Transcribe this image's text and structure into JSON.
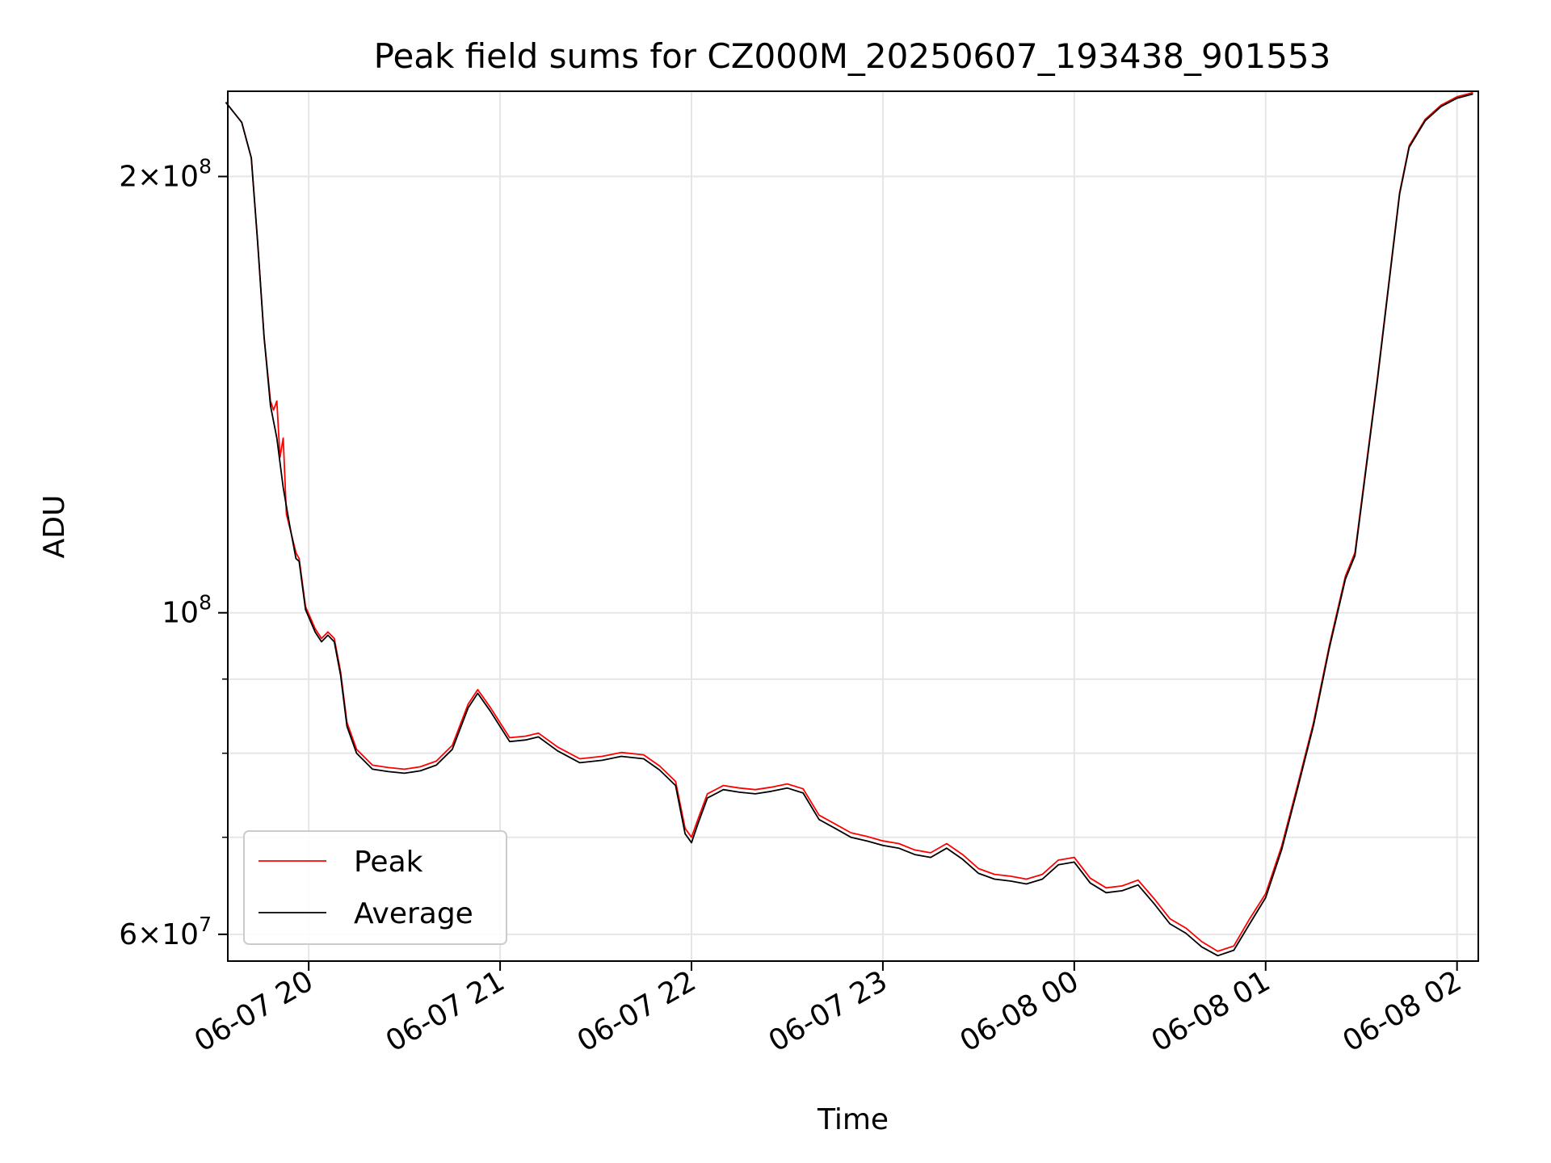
{
  "chart_data": {
    "type": "line",
    "title": "Peak field sums for CZ000M_20250607_193438_901553",
    "xlabel": "Time",
    "ylabel": "ADU",
    "yscale": "log",
    "ylim": [
      57500000,
      229000000
    ],
    "xlim": [
      "2025-06-07 19:34:38",
      "2025-06-08 02:06:40"
    ],
    "grid": true,
    "legend_position": "lower-left",
    "x_ticks": [
      {
        "time": "2025-06-07 20:00",
        "label": "06-07 20"
      },
      {
        "time": "2025-06-07 21:00",
        "label": "06-07 21"
      },
      {
        "time": "2025-06-07 22:00",
        "label": "06-07 22"
      },
      {
        "time": "2025-06-07 23:00",
        "label": "06-07 23"
      },
      {
        "time": "2025-06-08 00:00",
        "label": "06-08 00"
      },
      {
        "time": "2025-06-08 01:00",
        "label": "06-08 01"
      },
      {
        "time": "2025-06-08 02:00",
        "label": "06-08 02"
      }
    ],
    "y_major_ticks": [
      {
        "value": 60000000,
        "mantissa": "6",
        "exponent": "7"
      },
      {
        "value": 100000000,
        "mantissa": "",
        "exponent": "8"
      },
      {
        "value": 200000000,
        "mantissa": "2",
        "exponent": "8"
      }
    ],
    "y_minor_ticks": [
      70000000,
      80000000,
      90000000
    ],
    "series": [
      {
        "name": "Peak",
        "color": "#ff0000",
        "points": [
          [
            "2025-06-07 19:34",
            225000000
          ],
          [
            "2025-06-07 19:39",
            218000000
          ],
          [
            "2025-06-07 19:42",
            206000000
          ],
          [
            "2025-06-07 19:44",
            180000000
          ],
          [
            "2025-06-07 19:46",
            155000000
          ],
          [
            "2025-06-07 19:48",
            140000000
          ],
          [
            "2025-06-07 19:49",
            138000000
          ],
          [
            "2025-06-07 19:50",
            140000000
          ],
          [
            "2025-06-07 19:51",
            128000000
          ],
          [
            "2025-06-07 19:52",
            132000000
          ],
          [
            "2025-06-07 19:53",
            117000000
          ],
          [
            "2025-06-07 19:56",
            110000000
          ],
          [
            "2025-06-07 19:57",
            109000000
          ],
          [
            "2025-06-07 19:59",
            101000000
          ],
          [
            "2025-06-07 20:02",
            97500000
          ],
          [
            "2025-06-07 20:04",
            96000000
          ],
          [
            "2025-06-07 20:06",
            97000000
          ],
          [
            "2025-06-07 20:08",
            96000000
          ],
          [
            "2025-06-07 20:10",
            91000000
          ],
          [
            "2025-06-07 20:12",
            84000000
          ],
          [
            "2025-06-07 20:15",
            80500000
          ],
          [
            "2025-06-07 20:20",
            78500000
          ],
          [
            "2025-06-07 20:25",
            78200000
          ],
          [
            "2025-06-07 20:30",
            78000000
          ],
          [
            "2025-06-07 20:35",
            78300000
          ],
          [
            "2025-06-07 20:40",
            79000000
          ],
          [
            "2025-06-07 20:45",
            81000000
          ],
          [
            "2025-06-07 20:50",
            86500000
          ],
          [
            "2025-06-07 20:53",
            88500000
          ],
          [
            "2025-06-07 20:57",
            86000000
          ],
          [
            "2025-06-07 21:03",
            82000000
          ],
          [
            "2025-06-07 21:08",
            82200000
          ],
          [
            "2025-06-07 21:12",
            82600000
          ],
          [
            "2025-06-07 21:18",
            80800000
          ],
          [
            "2025-06-07 21:25",
            79300000
          ],
          [
            "2025-06-07 21:32",
            79600000
          ],
          [
            "2025-06-07 21:38",
            80100000
          ],
          [
            "2025-06-07 21:45",
            79800000
          ],
          [
            "2025-06-07 21:50",
            78400000
          ],
          [
            "2025-06-07 21:55",
            76500000
          ],
          [
            "2025-06-07 21:58",
            71000000
          ],
          [
            "2025-06-07 22:00",
            70000000
          ],
          [
            "2025-06-07 22:02",
            72000000
          ],
          [
            "2025-06-07 22:05",
            75000000
          ],
          [
            "2025-06-07 22:10",
            76000000
          ],
          [
            "2025-06-07 22:15",
            75700000
          ],
          [
            "2025-06-07 22:20",
            75500000
          ],
          [
            "2025-06-07 22:25",
            75800000
          ],
          [
            "2025-06-07 22:30",
            76200000
          ],
          [
            "2025-06-07 22:35",
            75600000
          ],
          [
            "2025-06-07 22:40",
            72500000
          ],
          [
            "2025-06-07 22:45",
            71500000
          ],
          [
            "2025-06-07 22:50",
            70500000
          ],
          [
            "2025-06-07 22:55",
            70100000
          ],
          [
            "2025-06-07 23:00",
            69600000
          ],
          [
            "2025-06-07 23:05",
            69300000
          ],
          [
            "2025-06-07 23:10",
            68600000
          ],
          [
            "2025-06-07 23:15",
            68300000
          ],
          [
            "2025-06-07 23:20",
            69300000
          ],
          [
            "2025-06-07 23:25",
            68100000
          ],
          [
            "2025-06-07 23:30",
            66600000
          ],
          [
            "2025-06-07 23:35",
            66000000
          ],
          [
            "2025-06-07 23:40",
            65800000
          ],
          [
            "2025-06-07 23:45",
            65500000
          ],
          [
            "2025-06-07 23:50",
            66000000
          ],
          [
            "2025-06-07 23:55",
            67500000
          ],
          [
            "2025-06-08 00:00",
            67800000
          ],
          [
            "2025-06-08 00:05",
            65600000
          ],
          [
            "2025-06-08 00:10",
            64600000
          ],
          [
            "2025-06-08 00:15",
            64800000
          ],
          [
            "2025-06-08 00:20",
            65400000
          ],
          [
            "2025-06-08 00:25",
            63500000
          ],
          [
            "2025-06-08 00:30",
            61500000
          ],
          [
            "2025-06-08 00:35",
            60600000
          ],
          [
            "2025-06-08 00:40",
            59300000
          ],
          [
            "2025-06-08 00:45",
            58400000
          ],
          [
            "2025-06-08 00:50",
            58900000
          ],
          [
            "2025-06-08 00:55",
            61500000
          ],
          [
            "2025-06-08 01:00",
            64000000
          ],
          [
            "2025-06-08 01:05",
            69000000
          ],
          [
            "2025-06-08 01:10",
            76000000
          ],
          [
            "2025-06-08 01:15",
            84000000
          ],
          [
            "2025-06-08 01:20",
            95000000
          ],
          [
            "2025-06-08 01:25",
            106000000
          ],
          [
            "2025-06-08 01:28",
            110000000
          ],
          [
            "2025-06-08 01:35",
            145000000
          ],
          [
            "2025-06-08 01:42",
            195000000
          ],
          [
            "2025-06-08 01:45",
            210000000
          ],
          [
            "2025-06-08 01:50",
            219000000
          ],
          [
            "2025-06-08 01:55",
            224000000
          ],
          [
            "2025-06-08 02:00",
            227000000
          ],
          [
            "2025-06-08 02:05",
            228500000
          ]
        ]
      },
      {
        "name": "Average",
        "color": "#000000",
        "points": [
          [
            "2025-06-07 19:34",
            225000000
          ],
          [
            "2025-06-07 19:39",
            218000000
          ],
          [
            "2025-06-07 19:42",
            206000000
          ],
          [
            "2025-06-07 19:44",
            180000000
          ],
          [
            "2025-06-07 19:46",
            155000000
          ],
          [
            "2025-06-07 19:48",
            139000000
          ],
          [
            "2025-06-07 19:50",
            132000000
          ],
          [
            "2025-06-07 19:52",
            122000000
          ],
          [
            "2025-06-07 19:54",
            115000000
          ],
          [
            "2025-06-07 19:56",
            109000000
          ],
          [
            "2025-06-07 19:57",
            108500000
          ],
          [
            "2025-06-07 19:59",
            100500000
          ],
          [
            "2025-06-07 20:02",
            97000000
          ],
          [
            "2025-06-07 20:04",
            95500000
          ],
          [
            "2025-06-07 20:06",
            96500000
          ],
          [
            "2025-06-07 20:08",
            95500000
          ],
          [
            "2025-06-07 20:10",
            90500000
          ],
          [
            "2025-06-07 20:12",
            83500000
          ],
          [
            "2025-06-07 20:15",
            80000000
          ],
          [
            "2025-06-07 20:20",
            78000000
          ],
          [
            "2025-06-07 20:25",
            77700000
          ],
          [
            "2025-06-07 20:30",
            77500000
          ],
          [
            "2025-06-07 20:35",
            77800000
          ],
          [
            "2025-06-07 20:40",
            78500000
          ],
          [
            "2025-06-07 20:45",
            80500000
          ],
          [
            "2025-06-07 20:50",
            86000000
          ],
          [
            "2025-06-07 20:53",
            88000000
          ],
          [
            "2025-06-07 20:57",
            85500000
          ],
          [
            "2025-06-07 21:03",
            81500000
          ],
          [
            "2025-06-07 21:08",
            81700000
          ],
          [
            "2025-06-07 21:12",
            82100000
          ],
          [
            "2025-06-07 21:18",
            80300000
          ],
          [
            "2025-06-07 21:25",
            78800000
          ],
          [
            "2025-06-07 21:32",
            79100000
          ],
          [
            "2025-06-07 21:38",
            79600000
          ],
          [
            "2025-06-07 21:45",
            79300000
          ],
          [
            "2025-06-07 21:50",
            77900000
          ],
          [
            "2025-06-07 21:55",
            76000000
          ],
          [
            "2025-06-07 21:58",
            70400000
          ],
          [
            "2025-06-07 22:00",
            69400000
          ],
          [
            "2025-06-07 22:02",
            71500000
          ],
          [
            "2025-06-07 22:05",
            74500000
          ],
          [
            "2025-06-07 22:10",
            75500000
          ],
          [
            "2025-06-07 22:15",
            75200000
          ],
          [
            "2025-06-07 22:20",
            75000000
          ],
          [
            "2025-06-07 22:25",
            75300000
          ],
          [
            "2025-06-07 22:30",
            75700000
          ],
          [
            "2025-06-07 22:35",
            75100000
          ],
          [
            "2025-06-07 22:40",
            72000000
          ],
          [
            "2025-06-07 22:45",
            71000000
          ],
          [
            "2025-06-07 22:50",
            70000000
          ],
          [
            "2025-06-07 22:55",
            69600000
          ],
          [
            "2025-06-07 23:00",
            69100000
          ],
          [
            "2025-06-07 23:05",
            68800000
          ],
          [
            "2025-06-07 23:10",
            68100000
          ],
          [
            "2025-06-07 23:15",
            67800000
          ],
          [
            "2025-06-07 23:20",
            68800000
          ],
          [
            "2025-06-07 23:25",
            67600000
          ],
          [
            "2025-06-07 23:30",
            66100000
          ],
          [
            "2025-06-07 23:35",
            65500000
          ],
          [
            "2025-06-07 23:40",
            65300000
          ],
          [
            "2025-06-07 23:45",
            65000000
          ],
          [
            "2025-06-07 23:50",
            65500000
          ],
          [
            "2025-06-07 23:55",
            67000000
          ],
          [
            "2025-06-08 00:00",
            67300000
          ],
          [
            "2025-06-08 00:05",
            65100000
          ],
          [
            "2025-06-08 00:10",
            64100000
          ],
          [
            "2025-06-08 00:15",
            64300000
          ],
          [
            "2025-06-08 00:20",
            64900000
          ],
          [
            "2025-06-08 00:25",
            63000000
          ],
          [
            "2025-06-08 00:30",
            61000000
          ],
          [
            "2025-06-08 00:35",
            60100000
          ],
          [
            "2025-06-08 00:40",
            58800000
          ],
          [
            "2025-06-08 00:45",
            58000000
          ],
          [
            "2025-06-08 00:50",
            58500000
          ],
          [
            "2025-06-08 00:55",
            61000000
          ],
          [
            "2025-06-08 01:00",
            63600000
          ],
          [
            "2025-06-08 01:05",
            68600000
          ],
          [
            "2025-06-08 01:10",
            75600000
          ],
          [
            "2025-06-08 01:15",
            83600000
          ],
          [
            "2025-06-08 01:20",
            94600000
          ],
          [
            "2025-06-08 01:25",
            105500000
          ],
          [
            "2025-06-08 01:28",
            109500000
          ],
          [
            "2025-06-08 01:35",
            144500000
          ],
          [
            "2025-06-08 01:42",
            194500000
          ],
          [
            "2025-06-08 01:45",
            209500000
          ],
          [
            "2025-06-08 01:50",
            218500000
          ],
          [
            "2025-06-08 01:55",
            223500000
          ],
          [
            "2025-06-08 02:00",
            226500000
          ],
          [
            "2025-06-08 02:05",
            228000000
          ]
        ]
      }
    ]
  }
}
